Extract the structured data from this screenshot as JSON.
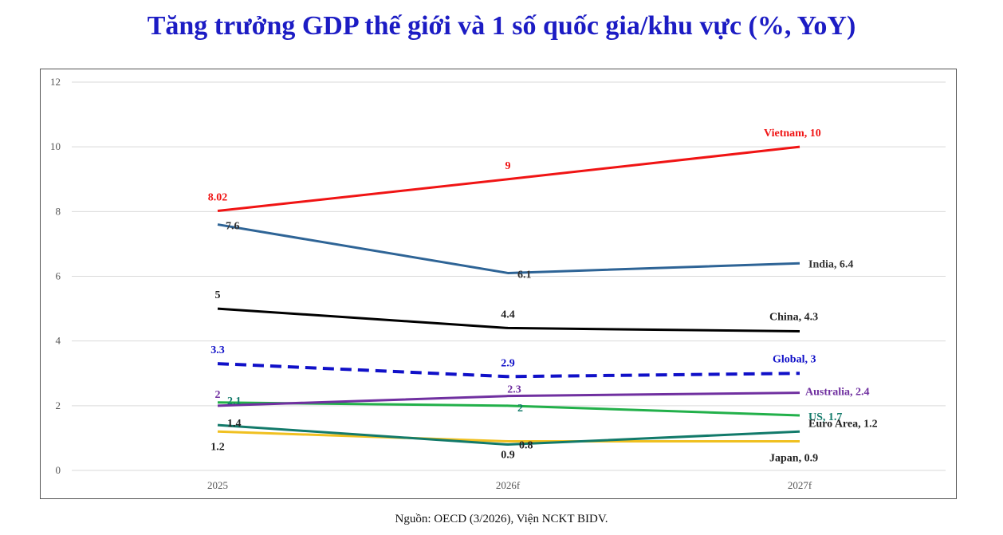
{
  "title": "Tăng trưởng GDP thế giới và 1 số quốc gia/khu vực (%, YoY)",
  "source": "Nguồn: OECD (3/2026), Viện NCKT BIDV.",
  "chart_data": {
    "type": "line",
    "title": "Tăng trưởng GDP thế giới và 1 số quốc gia/khu vực (%, YoY)",
    "categories": [
      "2025",
      "2026f",
      "2027f"
    ],
    "ylim": [
      0,
      12
    ],
    "yticks": [
      0,
      2,
      4,
      6,
      8,
      10,
      12
    ],
    "grid": true,
    "legend": "none (series labels at line ends)",
    "series": [
      {
        "name": "Vietnam",
        "values": [
          8.02,
          9,
          10
        ],
        "color": "#f01414",
        "dashed": false,
        "point_labels": [
          "8.02",
          "9",
          ""
        ],
        "end_label": "Vietnam, 10"
      },
      {
        "name": "India",
        "values": [
          7.6,
          6.1,
          6.4
        ],
        "color": "#2e6496",
        "dashed": false,
        "point_labels": [
          "7.6",
          "6.1",
          ""
        ],
        "end_label": "India, 6.4"
      },
      {
        "name": "China",
        "values": [
          5,
          4.4,
          4.3
        ],
        "color": "#000000",
        "dashed": false,
        "point_labels": [
          "5",
          "4.4",
          ""
        ],
        "end_label": "China, 4.3"
      },
      {
        "name": "Global",
        "values": [
          3.3,
          2.9,
          3
        ],
        "color": "#1010c8",
        "dashed": true,
        "point_labels": [
          "3.3",
          "2.9",
          ""
        ],
        "end_label": "Global, 3"
      },
      {
        "name": "Australia",
        "values": [
          2,
          2.3,
          2.4
        ],
        "color": "#7030a0",
        "dashed": false,
        "point_labels": [
          "2",
          "2.3",
          ""
        ],
        "end_label": "Australia, 2.4"
      },
      {
        "name": "US",
        "values": [
          2.1,
          2,
          1.7
        ],
        "color": "#22b04a",
        "dashed": false,
        "point_labels": [
          "2.1",
          "2",
          ""
        ],
        "end_label": "US, 1.7"
      },
      {
        "name": "Euro Area",
        "values": [
          1.4,
          0.8,
          1.2
        ],
        "color": "#127a6a",
        "dashed": false,
        "point_labels": [
          "1.4",
          "0.8",
          ""
        ],
        "end_label": "Euro Area, 1.2"
      },
      {
        "name": "Japan",
        "values": [
          1.2,
          0.9,
          0.9
        ],
        "color": "#f0c020",
        "dashed": false,
        "point_labels": [
          "1.2",
          "0.9",
          ""
        ],
        "end_label": "Japan, 0.9"
      }
    ]
  },
  "label_colors": {
    "Vietnam": "#f01414",
    "India": "#333333",
    "China": "#222222",
    "Global": "#1010c8",
    "Australia": "#7030a0",
    "US": "#127a6a",
    "Euro Area": "#222222",
    "Japan": "#222222"
  }
}
